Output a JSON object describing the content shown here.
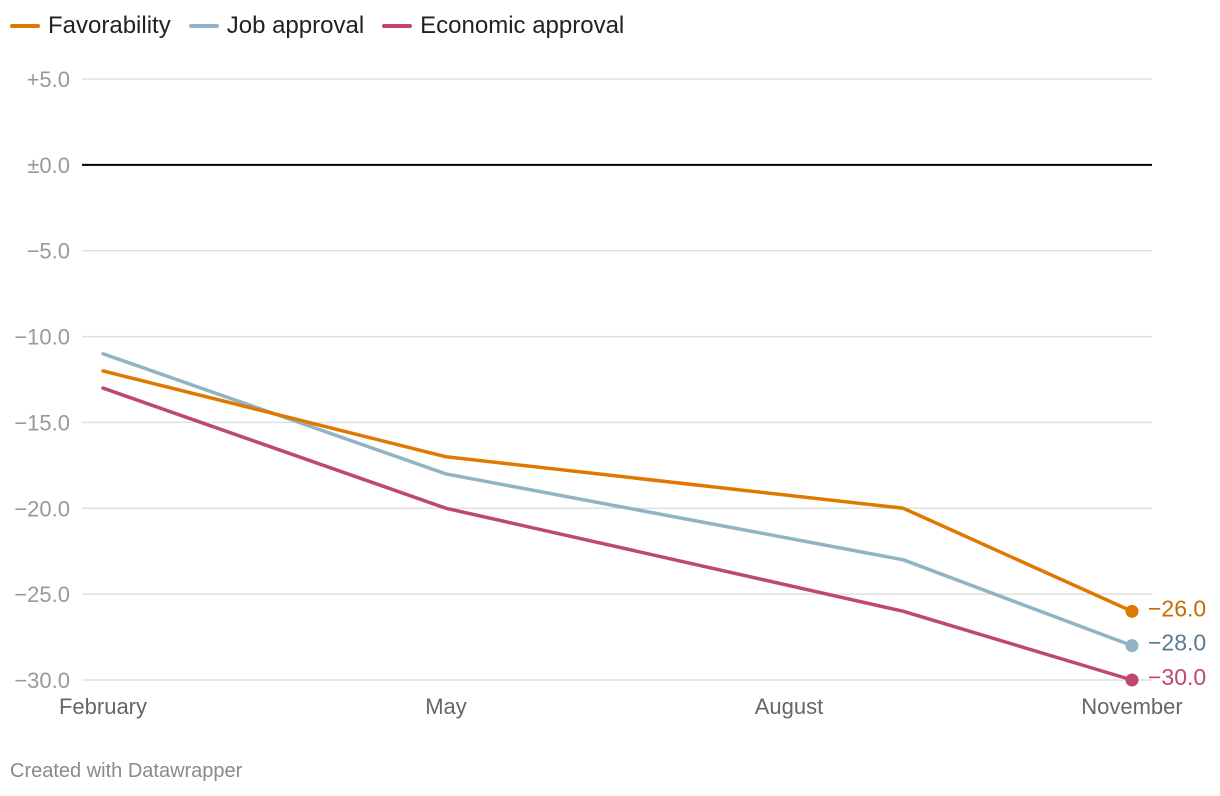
{
  "colors": {
    "favorability": "#e07800",
    "job_approval": "#92b3c6",
    "economic_approval": "#bd4a6c",
    "grid": "#e0e0e0",
    "zero_line": "#000000",
    "tick_text": "#999999"
  },
  "legend": [
    {
      "label": "Favorability"
    },
    {
      "label": "Job approval"
    },
    {
      "label": "Economic approval"
    }
  ],
  "footer": {
    "credit": "Created with Datawrapper"
  },
  "chart_data": {
    "type": "line",
    "title": "",
    "xlabel": "",
    "ylabel": "",
    "x": [
      0,
      3,
      6,
      9
    ],
    "x_tick_labels": [
      {
        "x": 0,
        "label": "February"
      },
      {
        "x": 3,
        "label": "May"
      },
      {
        "x": 6,
        "label": "August"
      },
      {
        "x": 9,
        "label": "November"
      }
    ],
    "series_x": [
      0,
      3,
      7,
      9
    ],
    "xlim": [
      0,
      9
    ],
    "ylim": [
      -30,
      5
    ],
    "y_ticks": [
      5,
      0,
      -5,
      -10,
      -15,
      -20,
      -25,
      -30
    ],
    "y_tick_labels": [
      "+5.0",
      "±0.0",
      "−5.0",
      "−10.0",
      "−15.0",
      "−20.0",
      "−25.0",
      "−30.0"
    ],
    "grid": true,
    "series": [
      {
        "name": "Favorability",
        "values": [
          -12,
          -17,
          -20,
          -26
        ],
        "end_label": "−26.0",
        "label_color": "#c96a00"
      },
      {
        "name": "Job approval",
        "values": [
          -11,
          -18,
          -23,
          -28
        ],
        "end_label": "−28.0",
        "label_color": "#5a7a90"
      },
      {
        "name": "Economic approval",
        "values": [
          -13,
          -20,
          -26,
          -30
        ],
        "end_label": "−30.0",
        "label_color": "#bd4a6c"
      }
    ]
  }
}
